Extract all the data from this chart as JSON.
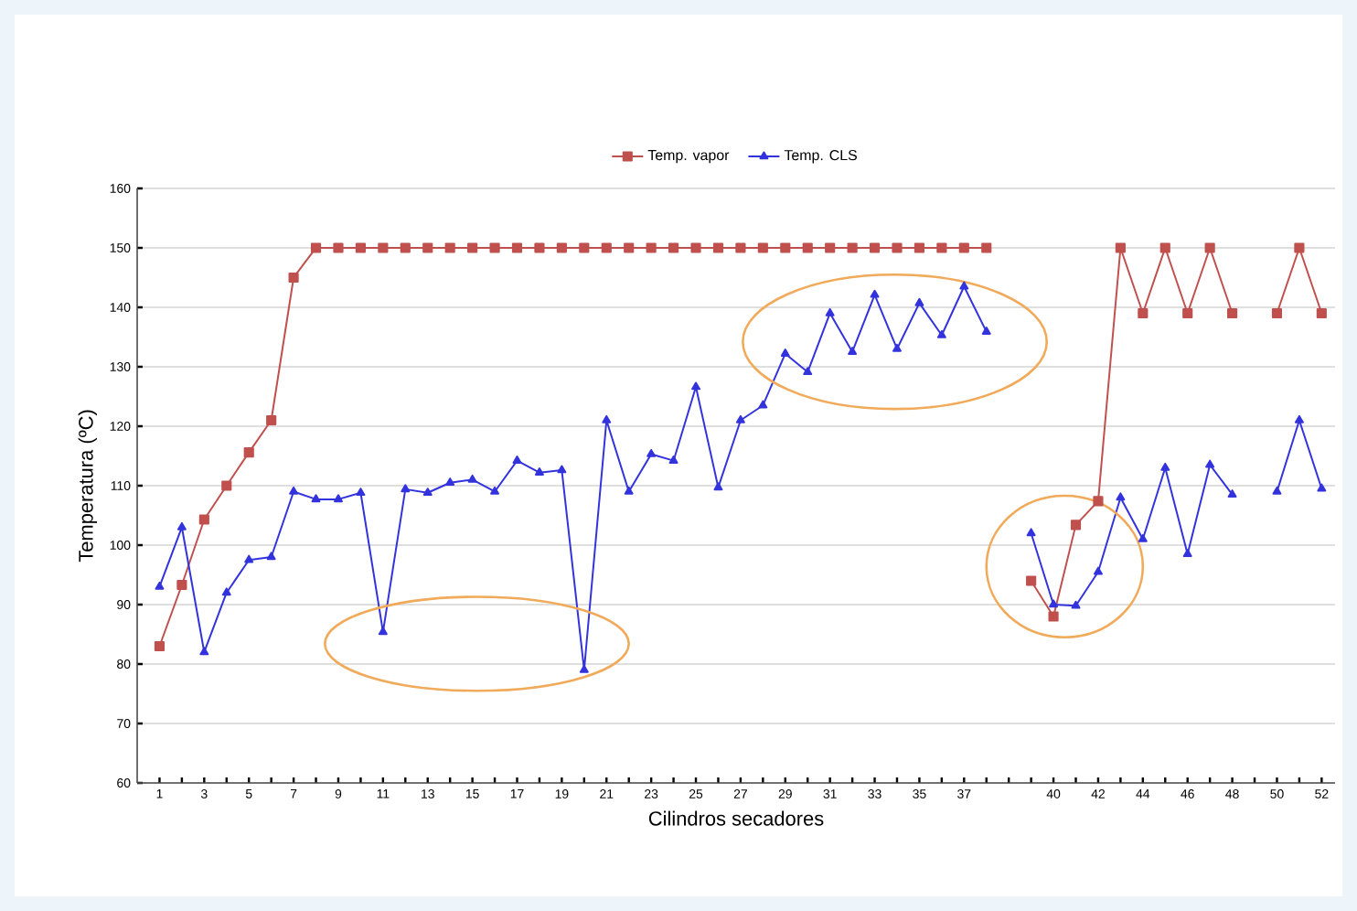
{
  "chart_data": {
    "type": "line",
    "xlabel": "Cilindros secadores",
    "ylabel": "Temperatura (ºC)",
    "categories": [
      "1",
      null,
      "3",
      null,
      "5",
      null,
      "7",
      null,
      "9",
      null,
      "11",
      null,
      "13",
      null,
      "15",
      null,
      "17",
      null,
      "19",
      null,
      "21",
      null,
      "23",
      null,
      "25",
      null,
      "27",
      null,
      "29",
      null,
      "31",
      null,
      "33",
      null,
      "35",
      null,
      "37",
      null,
      null,
      null,
      "40",
      null,
      "42",
      null,
      "44",
      null,
      "46",
      null,
      "48",
      null,
      "50",
      null,
      "52"
    ],
    "series": [
      {
        "name": "Temp. vapor",
        "color": "#c0504d",
        "marker": "square",
        "values": [
          83,
          93.3,
          104.3,
          110,
          115.6,
          121,
          145,
          150,
          150,
          150,
          150,
          150,
          150,
          150,
          150,
          150,
          150,
          150,
          150,
          150,
          150,
          150,
          150,
          150,
          150,
          150,
          150,
          150,
          150,
          150,
          150,
          150,
          150,
          150,
          150,
          150,
          150,
          150,
          null,
          94,
          88,
          103.4,
          107.4,
          150,
          139,
          150,
          139,
          150,
          139,
          null,
          139,
          150,
          139
        ]
      },
      {
        "name": "Temp. CLS",
        "color": "#3333dd",
        "marker": "triangle",
        "values": [
          93,
          103,
          82,
          92,
          97.5,
          98,
          109,
          107.7,
          107.7,
          108.8,
          85.4,
          109.4,
          108.8,
          110.5,
          111,
          109,
          114.2,
          112.2,
          112.6,
          79,
          121,
          109,
          115.3,
          114.2,
          126.6,
          109.7,
          121,
          123.5,
          132.2,
          129.1,
          139,
          132.5,
          142.1,
          133,
          140.7,
          135.3,
          143.5,
          135.9,
          null,
          102,
          90,
          89.8,
          95.5,
          108,
          101,
          113,
          98.5,
          113.5,
          108.5,
          null,
          109,
          121,
          109.5
        ]
      }
    ],
    "ylim": [
      60,
      160
    ],
    "yticks": [
      60,
      70,
      80,
      90,
      100,
      110,
      120,
      130,
      140,
      150,
      160
    ],
    "grid": "y",
    "legend": "top",
    "line_style": "solid"
  }
}
